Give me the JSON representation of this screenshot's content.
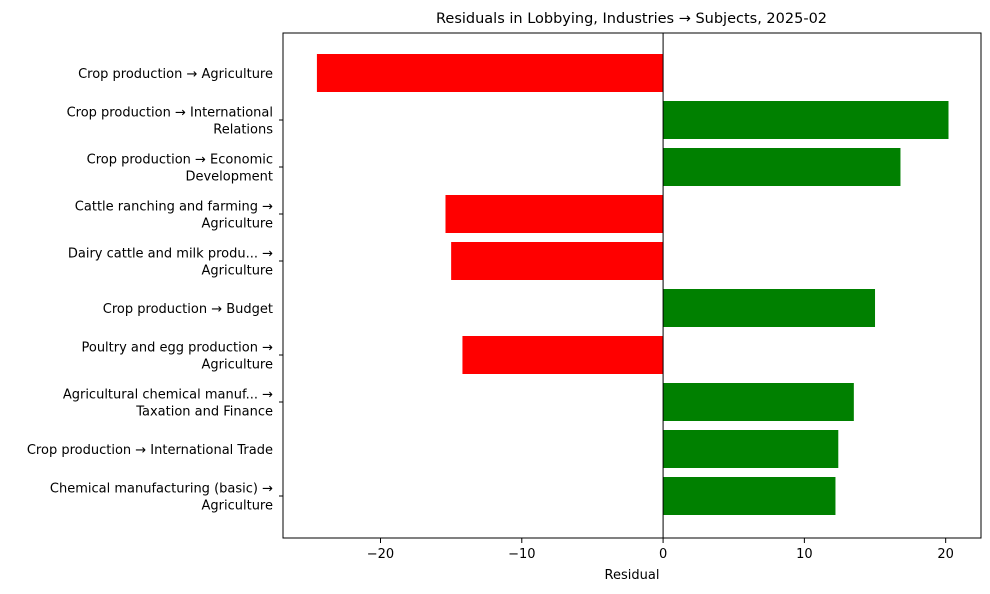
{
  "chart_data": {
    "type": "bar",
    "orientation": "horizontal",
    "title": "Residuals in Lobbying, Industries → Subjects, 2025-02",
    "xlabel": "Residual",
    "ylabel": "",
    "xlim": [
      -26.9,
      22.5
    ],
    "xticks": [
      -20,
      -10,
      0,
      10,
      20
    ],
    "xtick_labels": [
      "−20",
      "−10",
      "0",
      "10",
      "20"
    ],
    "grid": false,
    "legend": "none",
    "colors": {
      "negative": "#ff0000",
      "positive": "#008000",
      "zero_line": "#000000"
    },
    "categories": [
      [
        "Crop production → Agriculture"
      ],
      [
        "Crop production → International",
        "Relations"
      ],
      [
        "Crop production → Economic",
        "Development"
      ],
      [
        "Cattle ranching and farming →",
        "Agriculture"
      ],
      [
        "Dairy cattle and milk produ... →",
        "Agriculture"
      ],
      [
        "Crop production → Budget"
      ],
      [
        "Poultry and egg production →",
        "Agriculture"
      ],
      [
        "Agricultural chemical manuf... →",
        "Taxation and Finance"
      ],
      [
        "Crop production → International Trade"
      ],
      [
        "Chemical manufacturing (basic) →",
        "Agriculture"
      ]
    ],
    "values": [
      -24.5,
      20.2,
      16.8,
      -15.4,
      -15.0,
      15.0,
      -14.2,
      13.5,
      12.4,
      12.2
    ]
  }
}
